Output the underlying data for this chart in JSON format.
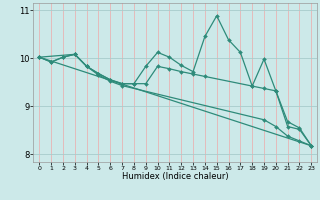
{
  "title": "",
  "xlabel": "Humidex (Indice chaleur)",
  "ylabel": "",
  "xlim": [
    -0.5,
    23.5
  ],
  "ylim": [
    7.85,
    11.15
  ],
  "yticks": [
    8,
    9,
    10,
    11
  ],
  "xticks": [
    0,
    1,
    2,
    3,
    4,
    5,
    6,
    7,
    8,
    9,
    10,
    11,
    12,
    13,
    14,
    15,
    16,
    17,
    18,
    19,
    20,
    21,
    22,
    23
  ],
  "bg_color": "#cce9e9",
  "line_color": "#2e8b7a",
  "vgrid_color": "#e8b4b4",
  "hgrid_color": "#a8cccc",
  "lines": [
    {
      "x": [
        0,
        1,
        2,
        3,
        4,
        5,
        6,
        7,
        8,
        9,
        10,
        11,
        12,
        13,
        14,
        15,
        16,
        17,
        18,
        19,
        20,
        21,
        22,
        23
      ],
      "y": [
        10.02,
        9.92,
        10.02,
        10.08,
        9.83,
        9.68,
        9.55,
        9.47,
        9.47,
        9.83,
        10.12,
        10.02,
        9.85,
        9.72,
        10.45,
        10.88,
        10.38,
        10.12,
        9.42,
        9.98,
        9.32,
        8.58,
        8.52,
        8.18
      ],
      "marker": "D",
      "markersize": 2.0,
      "linewidth": 0.9
    },
    {
      "x": [
        0,
        1,
        2,
        3,
        4,
        5,
        6,
        7,
        8,
        9,
        10,
        11,
        12,
        13,
        14,
        18,
        19,
        20,
        21,
        22,
        23
      ],
      "y": [
        10.02,
        9.92,
        10.02,
        10.08,
        9.83,
        9.68,
        9.55,
        9.47,
        9.47,
        9.47,
        9.83,
        9.78,
        9.72,
        9.67,
        9.62,
        9.42,
        9.37,
        9.32,
        8.68,
        8.55,
        8.18
      ],
      "marker": "D",
      "markersize": 2.0,
      "linewidth": 0.9
    },
    {
      "x": [
        0,
        3,
        4,
        5,
        6,
        7,
        19,
        20,
        21,
        22,
        23
      ],
      "y": [
        10.02,
        10.08,
        9.83,
        9.65,
        9.52,
        9.43,
        8.72,
        8.58,
        8.38,
        8.28,
        8.18
      ],
      "marker": "D",
      "markersize": 2.0,
      "linewidth": 0.9
    },
    {
      "x": [
        0,
        23
      ],
      "y": [
        10.02,
        8.18
      ],
      "marker": null,
      "markersize": 0,
      "linewidth": 0.9
    }
  ]
}
